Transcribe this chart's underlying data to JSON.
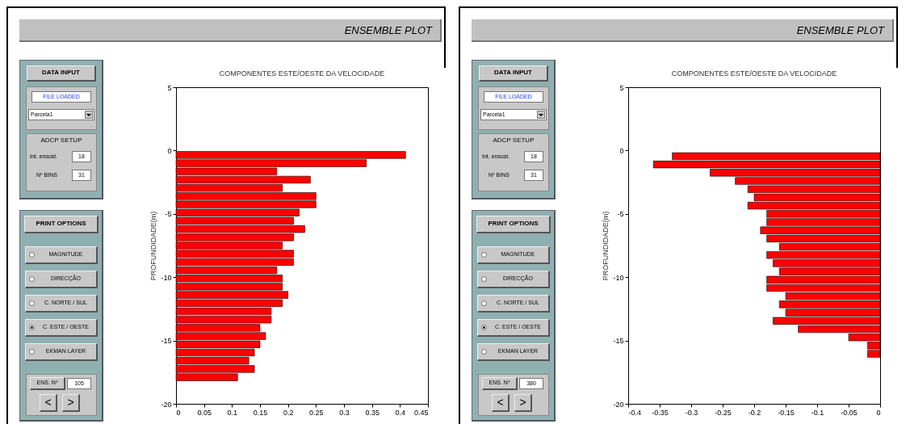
{
  "chart_data": [
    {
      "type": "bar",
      "orientation": "horizontal",
      "title": "COMPONENTES ESTE/OESTE DA VELOCIDADE",
      "ylabel": "PROFUNDIDADE(m)",
      "color": "#ff0000",
      "x": [
        -0.35,
        -1,
        -1.65,
        -2.3,
        -2.95,
        -3.6,
        -4.25,
        -4.9,
        -5.55,
        -6.2,
        -6.85,
        -7.5,
        -8.15,
        -8.8,
        -9.45,
        -10.1,
        -10.75,
        -11.4,
        -12.05,
        -12.7,
        -13.35,
        -14,
        -14.65,
        -15.3,
        -15.95,
        -16.6,
        -17.25,
        -17.9
      ],
      "values": [
        0.41,
        0.34,
        0.18,
        0.24,
        0.19,
        0.25,
        0.25,
        0.22,
        0.21,
        0.23,
        0.21,
        0.19,
        0.21,
        0.21,
        0.18,
        0.19,
        0.19,
        0.2,
        0.19,
        0.17,
        0.17,
        0.15,
        0.16,
        0.15,
        0.14,
        0.13,
        0.14,
        0.11
      ],
      "xlim": [
        0,
        0.45
      ],
      "xticks": [
        0,
        0.05,
        0.1,
        0.15,
        0.2,
        0.25,
        0.3,
        0.35,
        0.4,
        0.45
      ],
      "ylim": [
        -20,
        5
      ],
      "yticks": [
        -20,
        -15,
        -10,
        -5,
        0,
        5
      ],
      "annotations": [
        "ENSEMBLE PLOT",
        "DATA INPUT",
        "FILE LOADED",
        "Parcela1",
        "ADCP SETUP",
        "Int. ensost.",
        "18",
        "Nº BINS",
        "31",
        "PRINT OPTIONS",
        "MAGNITUDE",
        "DIRECÇÃO",
        "C. NORTE / SUL",
        "C. ESTE / OESTE",
        "EKMAN LAYER",
        "ENS. Nº",
        "105",
        "<",
        ">"
      ]
    },
    {
      "type": "bar",
      "orientation": "horizontal",
      "title": "COMPONENTES ESTE/OESTE DA VELOCIDADE",
      "ylabel": "PROFUNDIDADE(m)",
      "color": "#ff0000",
      "x": [
        -0.45,
        -1.1,
        -1.75,
        -2.4,
        -3.05,
        -3.7,
        -4.35,
        -5,
        -5.65,
        -6.3,
        -6.95,
        -7.6,
        -8.25,
        -8.9,
        -9.55,
        -10.2,
        -10.85,
        -11.5,
        -12.15,
        -12.8,
        -13.45,
        -14.1,
        -14.75,
        -15.4,
        -16.05
      ],
      "values": [
        -0.33,
        -0.36,
        -0.27,
        -0.23,
        -0.21,
        -0.2,
        -0.21,
        -0.18,
        -0.18,
        -0.19,
        -0.18,
        -0.16,
        -0.18,
        -0.17,
        -0.16,
        -0.18,
        -0.18,
        -0.15,
        -0.16,
        -0.15,
        -0.17,
        -0.13,
        -0.05,
        -0.02,
        -0.02
      ],
      "xlim": [
        -0.4,
        0
      ],
      "xticks": [
        -0.4,
        -0.35,
        -0.3,
        -0.25,
        -0.2,
        -0.15,
        -0.1,
        -0.05,
        0
      ],
      "ylim": [
        -20,
        5
      ],
      "yticks": [
        -20,
        -15,
        -10,
        -5,
        0,
        5
      ],
      "annotations": [
        "ENSEMBLE PLOT",
        "DATA INPUT",
        "FILE LOADED",
        "Parcela1",
        "ADCP SETUP",
        "Int. ensost.",
        "18",
        "Nº BINS",
        "31",
        "PRINT OPTIONS",
        "MAGNITUDE",
        "DIRECÇÃO",
        "C. NORTE / SUL",
        "C. ESTE / OESTE",
        "EKMAN LAYER",
        "ENS. Nº",
        "380",
        "<",
        ">"
      ]
    }
  ]
}
